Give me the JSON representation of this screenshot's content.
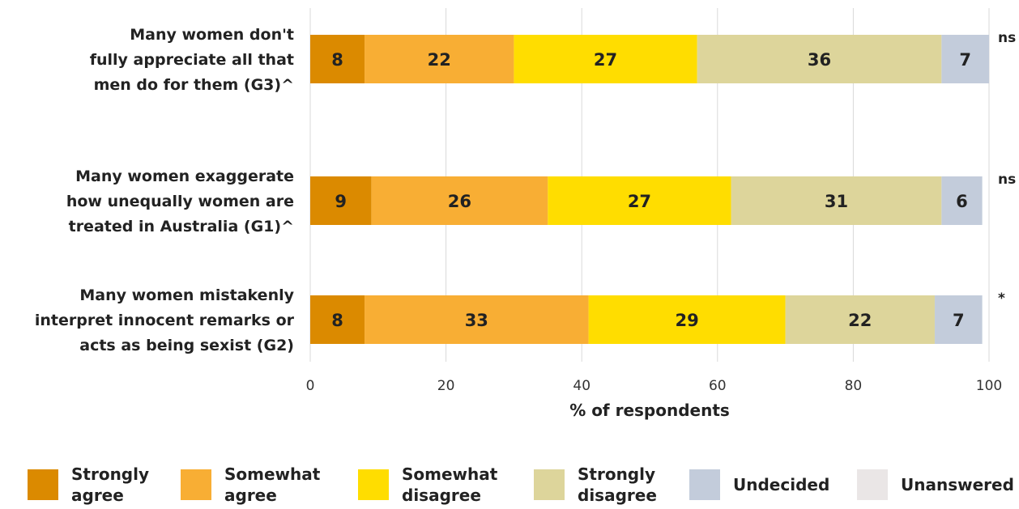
{
  "chart_data": {
    "type": "bar",
    "orientation": "horizontal",
    "stacked": true,
    "title": "",
    "xlabel": "% of respondents",
    "ylabel": "",
    "xlim": [
      0,
      100
    ],
    "xticks": [
      0,
      20,
      40,
      60,
      80,
      100
    ],
    "grid": "vertical",
    "legend_position": "bottom",
    "categories": [
      "Many women don't fully appreciate all that men do for them (G3)^",
      "Many women exaggerate how unequally women are treated in Australia (G1)^",
      "Many women mistakenly interpret innocent remarks or acts as being sexist (G2)"
    ],
    "category_lines": [
      [
        "Many women don't",
        "fully appreciate all that",
        "men do for them (G3)^"
      ],
      [
        "Many women exaggerate",
        "how unequally women are",
        "treated in Australia (G1)^"
      ],
      [
        "Many women mistakenly",
        "interpret innocent remarks or",
        "acts as being sexist (G2)"
      ]
    ],
    "significance": [
      "ns",
      "ns",
      "*"
    ],
    "series": [
      {
        "name": "Strongly agree",
        "legend_lines": [
          "Strongly",
          "agree"
        ],
        "color": "#DB8A00",
        "values": [
          8,
          9,
          8
        ]
      },
      {
        "name": "Somewhat agree",
        "legend_lines": [
          "Somewhat",
          "agree"
        ],
        "color": "#F8AE34",
        "values": [
          22,
          26,
          33
        ]
      },
      {
        "name": "Somewhat disagree",
        "legend_lines": [
          "Somewhat",
          "disagree"
        ],
        "color": "#FFDD00",
        "values": [
          27,
          27,
          29
        ]
      },
      {
        "name": "Strongly disagree",
        "legend_lines": [
          "Strongly",
          "disagree"
        ],
        "color": "#DDD59B",
        "values": [
          36,
          31,
          22
        ]
      },
      {
        "name": "Undecided",
        "legend_lines": [
          "Undecided"
        ],
        "color": "#C3CCDB",
        "values": [
          7,
          6,
          7
        ]
      },
      {
        "name": "Unanswered",
        "legend_lines": [
          "Unanswered"
        ],
        "color": "#EAE6E6",
        "values": [
          0,
          0,
          0
        ]
      }
    ]
  }
}
